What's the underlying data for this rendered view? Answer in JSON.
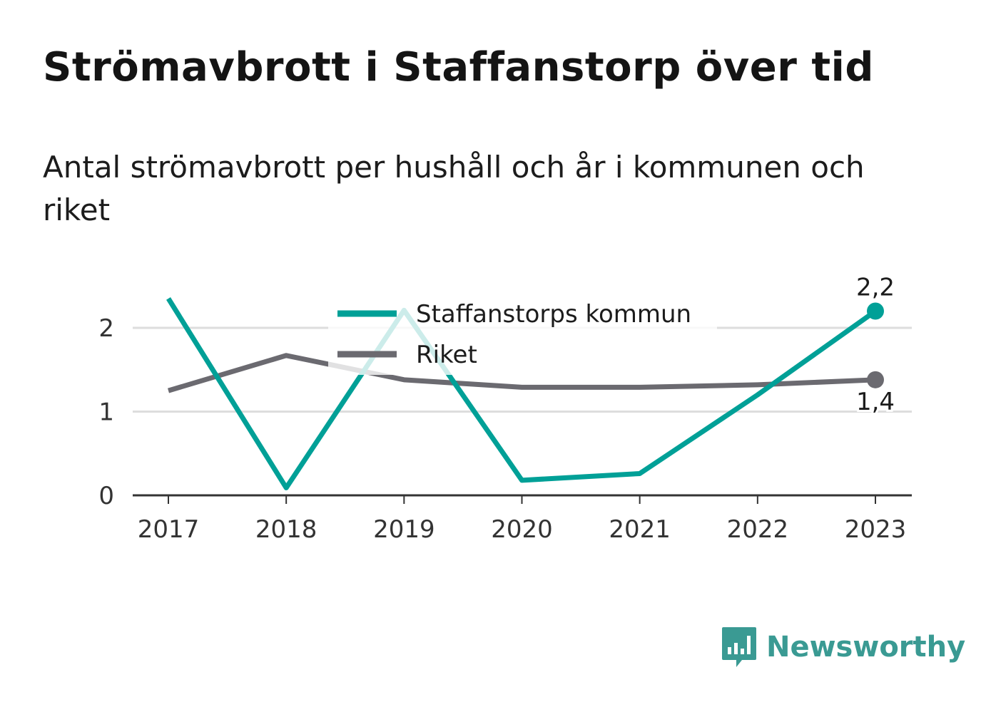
{
  "title": "Strömavbrott i Staffanstorp över tid",
  "subtitle": "Antal strömavbrott per hushåll och år i kommunen och riket",
  "brand": "Newsworthy",
  "colors": {
    "kommun": "#00a097",
    "riket": "#6b6a70",
    "grid": "#dddddd",
    "axis": "#333333",
    "brand": "#3a9a93"
  },
  "chart_data": {
    "type": "line",
    "x": [
      "2017",
      "2018",
      "2019",
      "2020",
      "2021",
      "2022",
      "2023"
    ],
    "yticks": [
      "0",
      "1",
      "2"
    ],
    "ylim": [
      0,
      2.5
    ],
    "grid": true,
    "legend_position": "top-center",
    "series": [
      {
        "name": "Staffanstorps kommun",
        "values": [
          2.35,
          0.09,
          2.21,
          0.18,
          0.26,
          1.2,
          2.2
        ],
        "end_label": "2,2"
      },
      {
        "name": "Riket",
        "values": [
          1.25,
          1.67,
          1.38,
          1.29,
          1.29,
          1.32,
          1.38
        ],
        "end_label": "1,4"
      }
    ]
  }
}
